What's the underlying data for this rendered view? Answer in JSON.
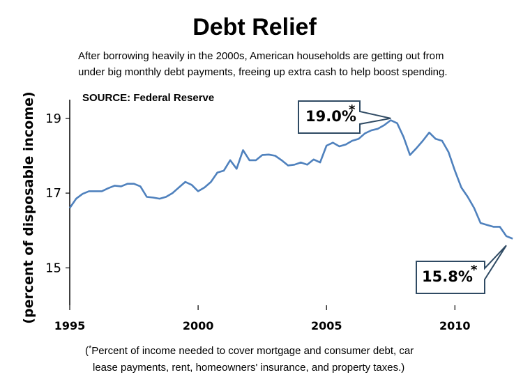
{
  "chart_data": {
    "type": "line",
    "title": "Debt Relief",
    "subtitle_lines": [
      "After borrowing heavily in the 2000s, American households are getting out from",
      "under  big monthly debt payments, freeing up extra cash to help boost spending."
    ],
    "source": "SOURCE: Federal Reserve",
    "ylabel": "(percent of disposable  income)",
    "xlabel": "",
    "xlim": [
      1995,
      2012.3
    ],
    "ylim": [
      14,
      19.5
    ],
    "yticks": [
      "15",
      "17",
      "19"
    ],
    "ytick_values": [
      15,
      17,
      19
    ],
    "xticks": [
      "1995",
      "2000",
      "2005",
      "2010"
    ],
    "xtick_values": [
      1995,
      2000,
      2005,
      2010
    ],
    "grid": false,
    "legend": "none",
    "line_color": "#4f81bd",
    "callout_color": "#2f4a63",
    "footnote_lines": [
      "Percent of income needed to cover mortgage and consumer debt, car",
      "lease payments, rent, homeowners' insurance, and property taxes.)"
    ],
    "footnote_open": "(",
    "footnote_star": "*",
    "annotations": [
      {
        "text": "19.0%",
        "star": "*",
        "x": 2007.5,
        "y": 19.0
      },
      {
        "text": "15.8%",
        "star": "*",
        "x": 2012.0,
        "y": 15.6
      }
    ],
    "series": [
      {
        "x": [
          1995.0,
          1995.25,
          1995.5,
          1995.75,
          1996.0,
          1996.25,
          1996.5,
          1996.75,
          1997.0,
          1997.25,
          1997.5,
          1997.75,
          1998.0,
          1998.25,
          1998.5,
          1998.75,
          1999.0,
          1999.25,
          1999.5,
          1999.75,
          2000.0,
          2000.25,
          2000.5,
          2000.75,
          2001.0,
          2001.25,
          2001.5,
          2001.75,
          2002.0,
          2002.25,
          2002.5,
          2002.75,
          2003.0,
          2003.25,
          2003.5,
          2003.75,
          2004.0,
          2004.25,
          2004.5,
          2004.75,
          2005.0,
          2005.25,
          2005.5,
          2005.75,
          2006.0,
          2006.25,
          2006.5,
          2006.75,
          2007.0,
          2007.25,
          2007.5,
          2007.75,
          2008.0,
          2008.25,
          2008.5,
          2008.75,
          2009.0,
          2009.25,
          2009.5,
          2009.75,
          2010.0,
          2010.25,
          2010.5,
          2010.75,
          2011.0,
          2011.25,
          2011.5,
          2011.75,
          2012.0,
          2012.25
        ],
        "values": [
          16.6,
          16.85,
          16.98,
          17.05,
          17.05,
          17.05,
          17.13,
          17.2,
          17.18,
          17.25,
          17.25,
          17.18,
          16.9,
          16.88,
          16.85,
          16.9,
          17.0,
          17.15,
          17.3,
          17.22,
          17.05,
          17.15,
          17.3,
          17.55,
          17.6,
          17.88,
          17.65,
          18.15,
          17.88,
          17.88,
          18.02,
          18.03,
          18.0,
          17.88,
          17.74,
          17.76,
          17.82,
          17.76,
          17.9,
          17.82,
          18.27,
          18.35,
          18.25,
          18.3,
          18.4,
          18.45,
          18.6,
          18.68,
          18.72,
          18.82,
          18.95,
          18.87,
          18.5,
          18.02,
          18.2,
          18.4,
          18.62,
          18.45,
          18.4,
          18.1,
          17.6,
          17.15,
          16.9,
          16.6,
          16.2,
          16.15,
          16.1,
          16.1,
          15.85,
          15.78
        ]
      }
    ]
  }
}
